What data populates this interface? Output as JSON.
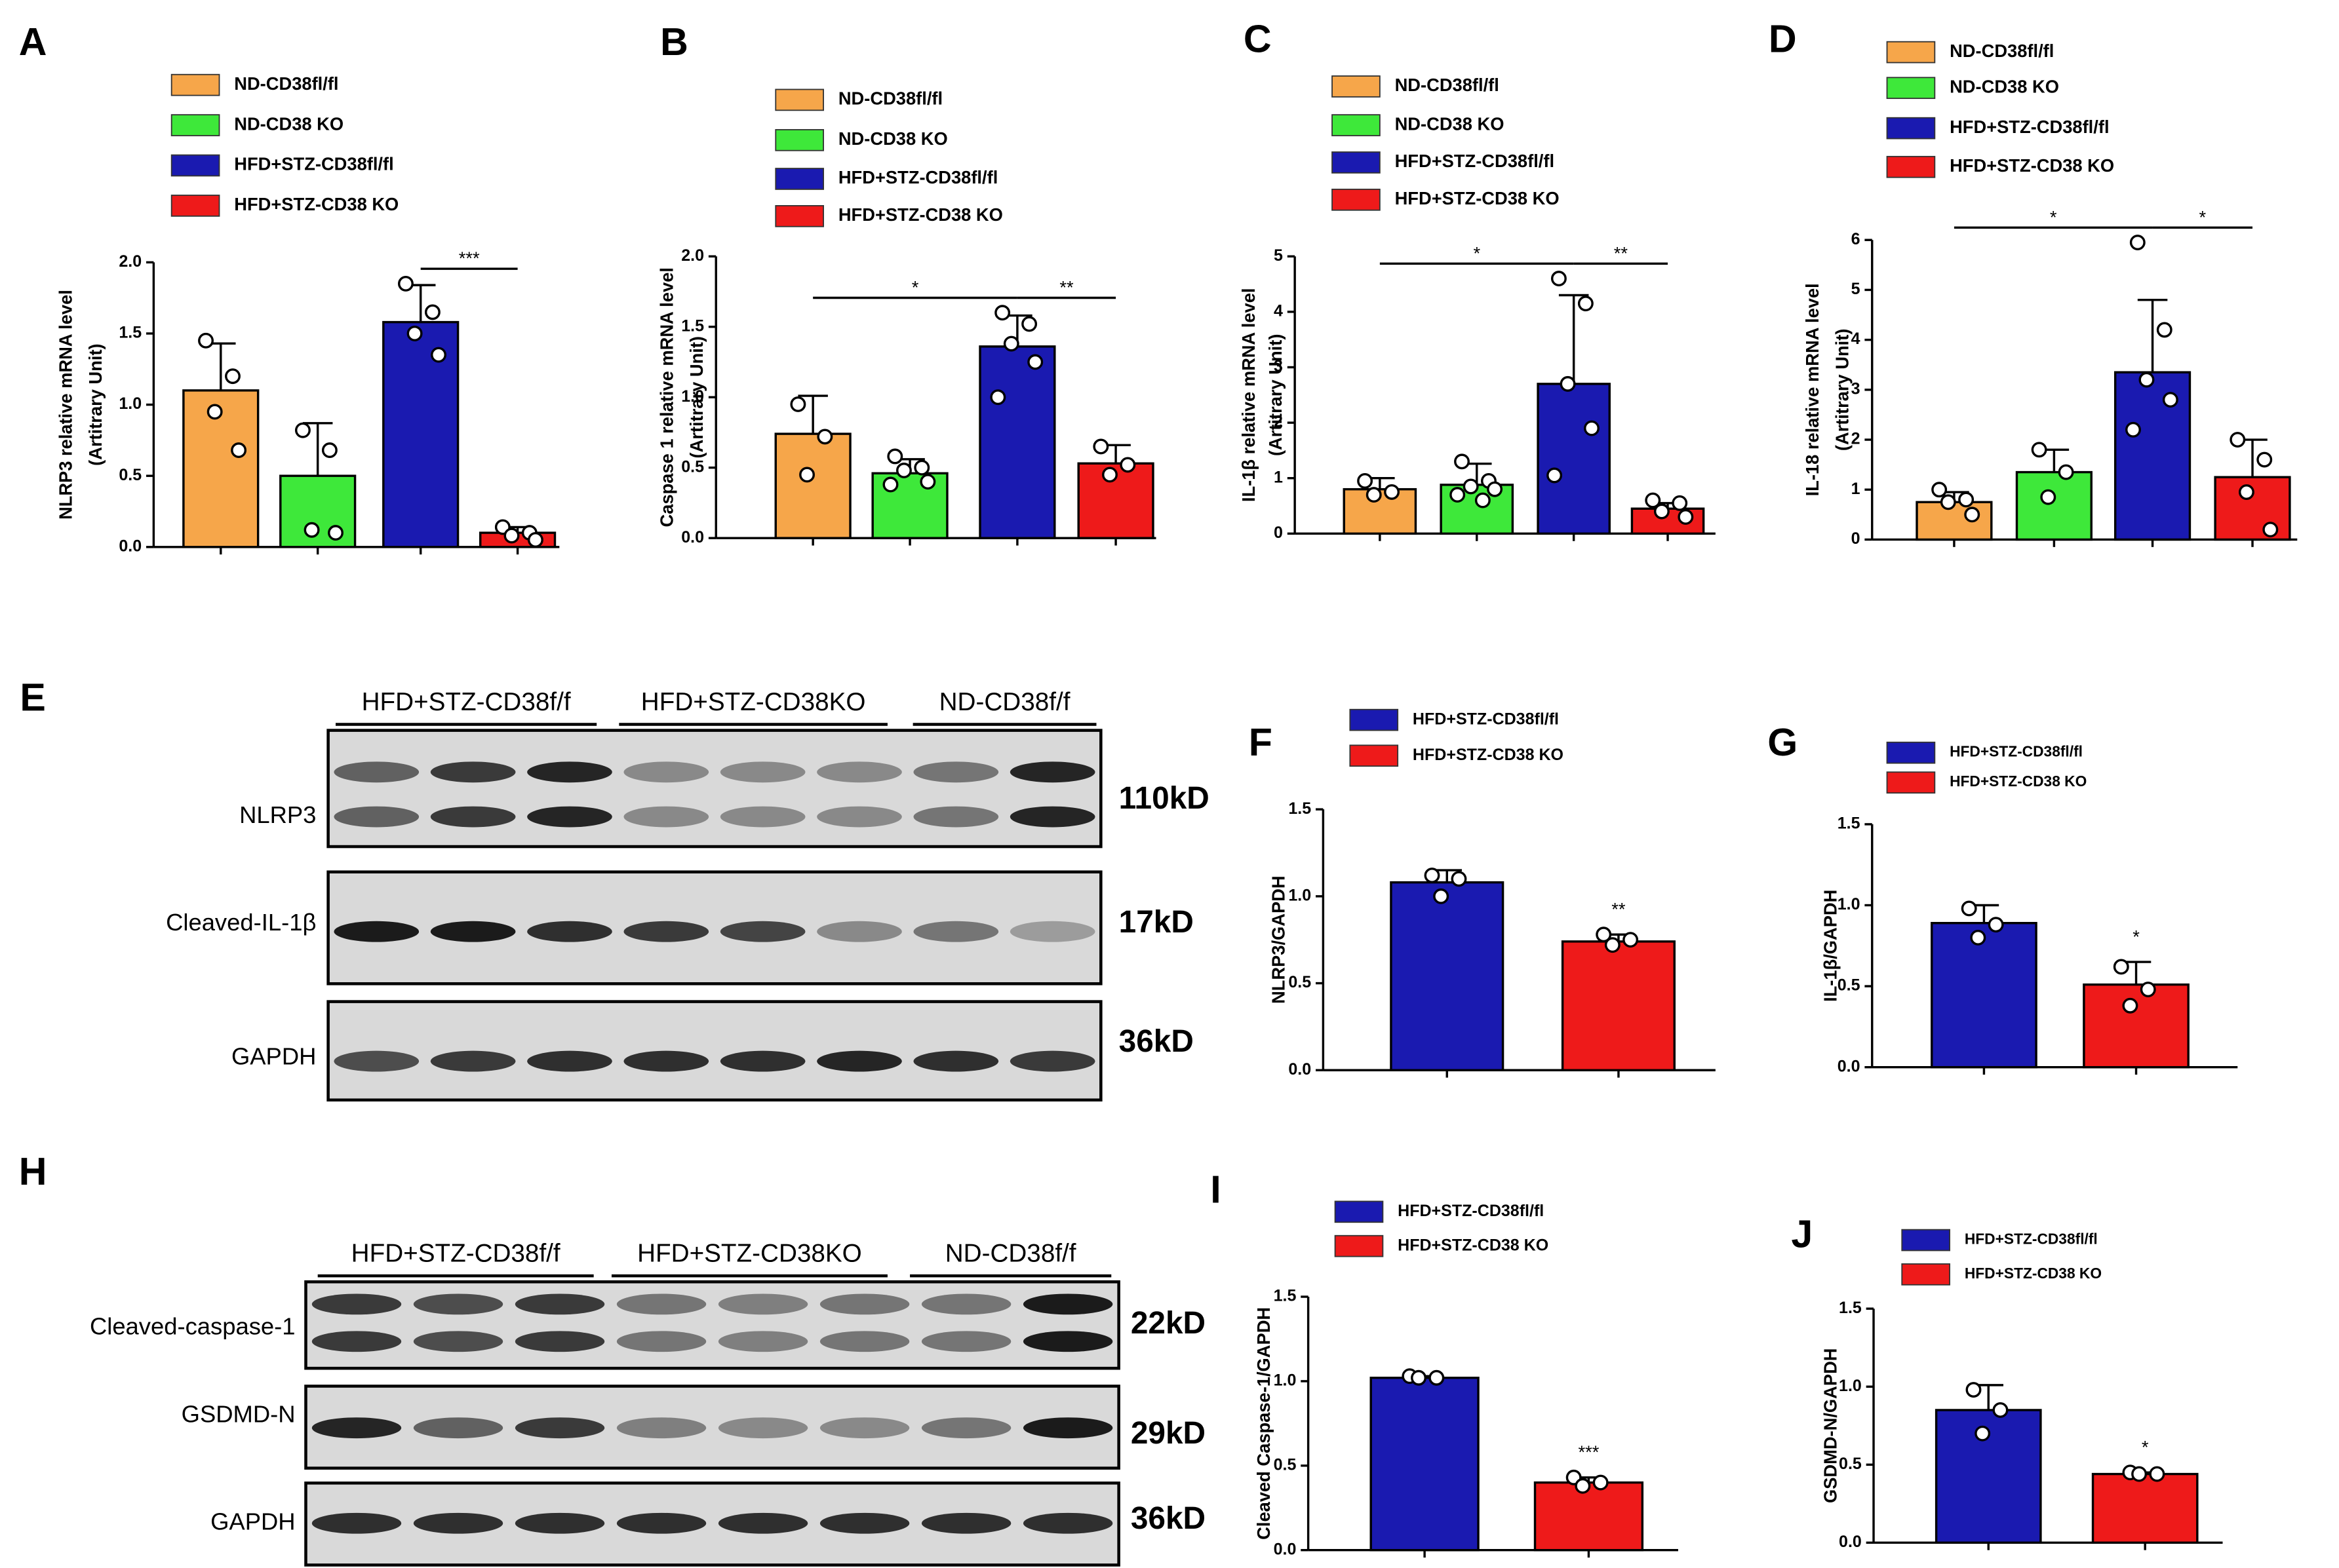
{
  "chart_data": [
    {
      "type": "bar",
      "panel": "A",
      "ylabel": [
        "NLRP3  relative mRNA level",
        "(Artitrary Unit)"
      ],
      "categories": [
        null
      ],
      "series": [
        {
          "name": "ND-CD38fl/fl",
          "color": "#f6a64a",
          "values": [
            1.1
          ],
          "errors": [
            0.33
          ],
          "points": [
            [
              1.45,
              1.2,
              0.95,
              0.68
            ]
          ]
        },
        {
          "name": "ND-CD38 KO",
          "color": "#3ee83a",
          "values": [
            0.5
          ],
          "errors": [
            0.37
          ],
          "points": [
            [
              0.82,
              0.68,
              0.12,
              0.1
            ]
          ]
        },
        {
          "name": "HFD+STZ-CD38fl/fl",
          "color": "#1a1ab0",
          "values": [
            1.58
          ],
          "errors": [
            0.26
          ],
          "points": [
            [
              1.85,
              1.65,
              1.5,
              1.35
            ]
          ]
        },
        {
          "name": "HFD+STZ-CD38 KO",
          "color": "#ee1a1a",
          "values": [
            0.1
          ],
          "errors": [
            0.04
          ],
          "points": [
            [
              0.14,
              0.1,
              0.08,
              0.05
            ]
          ]
        }
      ],
      "ylim": [
        0,
        2
      ],
      "yticks": [
        {
          "value": 0,
          "label": "0.0"
        },
        {
          "value": 0.5,
          "label": "0.5"
        },
        {
          "value": 1,
          "label": "1.0"
        },
        {
          "value": 1.5,
          "label": "1.5"
        },
        {
          "value": 2,
          "label": "2.0"
        }
      ],
      "annotations": [
        "***"
      ]
    },
    {
      "type": "bar",
      "panel": "B",
      "ylabel": [
        "Caspase 1  relative mRNA level",
        "(Artitrary Unit)"
      ],
      "categories": [
        null
      ],
      "series": [
        {
          "name": "ND-CD38fl/fl",
          "color": "#f6a64a",
          "values": [
            0.74
          ],
          "errors": [
            0.27
          ],
          "points": [
            [
              0.95,
              0.72,
              0.45
            ]
          ]
        },
        {
          "name": "ND-CD38 KO",
          "color": "#3ee83a",
          "values": [
            0.46
          ],
          "errors": [
            0.1
          ],
          "points": [
            [
              0.58,
              0.5,
              0.48,
              0.4,
              0.38
            ]
          ]
        },
        {
          "name": "HFD+STZ-CD38fl/fl",
          "color": "#1a1ab0",
          "values": [
            1.36
          ],
          "errors": [
            0.22
          ],
          "points": [
            [
              1.6,
              1.52,
              1.38,
              1.25,
              1.0
            ]
          ]
        },
        {
          "name": "HFD+STZ-CD38 KO",
          "color": "#ee1a1a",
          "values": [
            0.53
          ],
          "errors": [
            0.13
          ],
          "points": [
            [
              0.65,
              0.52,
              0.45
            ]
          ]
        }
      ],
      "ylim": [
        0,
        2
      ],
      "yticks": [
        {
          "value": 0,
          "label": "0.0"
        },
        {
          "value": 0.5,
          "label": "0.5"
        },
        {
          "value": 1,
          "label": "1.0"
        },
        {
          "value": 1.5,
          "label": "1.5"
        },
        {
          "value": 2,
          "label": "2.0"
        }
      ],
      "annotations": [
        "*",
        "**"
      ]
    },
    {
      "type": "bar",
      "panel": "C",
      "ylabel": [
        "IL-1β  relative mRNA level",
        "(Artitrary Unit)"
      ],
      "categories": [
        null
      ],
      "series": [
        {
          "name": "ND-CD38fl/fl",
          "color": "#f6a64a",
          "values": [
            0.8
          ],
          "errors": [
            0.2
          ],
          "points": [
            [
              0.95,
              0.75,
              0.7
            ]
          ]
        },
        {
          "name": "ND-CD38 KO",
          "color": "#3ee83a",
          "values": [
            0.88
          ],
          "errors": [
            0.38
          ],
          "points": [
            [
              1.3,
              0.95,
              0.85,
              0.8,
              0.7,
              0.6
            ]
          ]
        },
        {
          "name": "HFD+STZ-CD38fl/fl",
          "color": "#1a1ab0",
          "values": [
            2.7
          ],
          "errors": [
            1.6
          ],
          "points": [
            [
              4.6,
              4.15,
              2.7,
              1.9,
              1.05
            ]
          ]
        },
        {
          "name": "HFD+STZ-CD38 KO",
          "color": "#ee1a1a",
          "values": [
            0.45
          ],
          "errors": [
            0.1
          ],
          "points": [
            [
              0.6,
              0.55,
              0.4,
              0.3
            ]
          ]
        }
      ],
      "ylim": [
        0,
        5
      ],
      "yticks": [
        0,
        1,
        2,
        3,
        4,
        5
      ],
      "annotations": [
        "*",
        "**"
      ]
    },
    {
      "type": "bar",
      "panel": "D",
      "ylabel": [
        "IL-18 relative mRNA level",
        "(Artitrary Unit)"
      ],
      "categories": [
        null
      ],
      "series": [
        {
          "name": "ND-CD38fl/fl",
          "color": "#f6a64a",
          "values": [
            0.75
          ],
          "errors": [
            0.2
          ],
          "points": [
            [
              1.0,
              0.8,
              0.75,
              0.5
            ]
          ]
        },
        {
          "name": "ND-CD38 KO",
          "color": "#3ee83a",
          "values": [
            1.35
          ],
          "errors": [
            0.45
          ],
          "points": [
            [
              1.8,
              1.35,
              0.85
            ]
          ]
        },
        {
          "name": "HFD+STZ-CD38fl/fl",
          "color": "#1a1ab0",
          "values": [
            3.35
          ],
          "errors": [
            1.45
          ],
          "points": [
            [
              5.95,
              4.2,
              3.2,
              2.8,
              2.2
            ]
          ]
        },
        {
          "name": "HFD+STZ-CD38 KO",
          "color": "#ee1a1a",
          "values": [
            1.25
          ],
          "errors": [
            0.75
          ],
          "points": [
            [
              2.0,
              1.6,
              0.95,
              0.2
            ]
          ]
        }
      ],
      "ylim": [
        0,
        6
      ],
      "yticks": [
        0,
        1,
        2,
        3,
        4,
        5,
        6
      ],
      "annotations": [
        "*",
        "*"
      ]
    },
    {
      "type": "bar",
      "panel": "F",
      "ylabel": [
        "NLRP3/GAPDH"
      ],
      "categories": [
        null
      ],
      "series": [
        {
          "name": "HFD+STZ-CD38fl/fl",
          "color": "#1a1ab0",
          "values": [
            1.08
          ],
          "errors": [
            0.07
          ],
          "points": [
            [
              1.12,
              1.1,
              1.0
            ]
          ]
        },
        {
          "name": "HFD+STZ-CD38 KO",
          "color": "#ee1a1a",
          "values": [
            0.74
          ],
          "errors": [
            0.04
          ],
          "points": [
            [
              0.78,
              0.75,
              0.72
            ]
          ]
        }
      ],
      "ylim": [
        0,
        1.5
      ],
      "yticks": [
        {
          "value": 0,
          "label": "0.0"
        },
        {
          "value": 0.5,
          "label": "0.5"
        },
        {
          "value": 1,
          "label": "1.0"
        },
        {
          "value": 1.5,
          "label": "1.5"
        }
      ],
      "annotations": [
        "**"
      ]
    },
    {
      "type": "bar",
      "panel": "G",
      "ylabel": [
        "IL-1β/GAPDH"
      ],
      "categories": [
        null
      ],
      "series": [
        {
          "name": "HFD+STZ-CD38fl/fl",
          "color": "#1a1ab0",
          "values": [
            0.89
          ],
          "errors": [
            0.11
          ],
          "points": [
            [
              0.98,
              0.88,
              0.8
            ]
          ]
        },
        {
          "name": "HFD+STZ-CD38 KO",
          "color": "#ee1a1a",
          "values": [
            0.51
          ],
          "errors": [
            0.14
          ],
          "points": [
            [
              0.62,
              0.48,
              0.38
            ]
          ]
        }
      ],
      "ylim": [
        0,
        1.5
      ],
      "yticks": [
        {
          "value": 0,
          "label": "0.0"
        },
        {
          "value": 0.5,
          "label": "0.5"
        },
        {
          "value": 1,
          "label": "1.0"
        },
        {
          "value": 1.5,
          "label": "1.5"
        }
      ],
      "annotations": [
        "*"
      ]
    },
    {
      "type": "bar",
      "panel": "I",
      "ylabel": [
        "Cleaved Caspase-1/GAPDH"
      ],
      "categories": [
        null
      ],
      "series": [
        {
          "name": "HFD+STZ-CD38fl/fl",
          "color": "#1a1ab0",
          "values": [
            1.02
          ],
          "errors": [
            0.01
          ],
          "points": [
            [
              1.03,
              1.02,
              1.02
            ]
          ]
        },
        {
          "name": "HFD+STZ-CD38 KO",
          "color": "#ee1a1a",
          "values": [
            0.4
          ],
          "errors": [
            0.03
          ],
          "points": [
            [
              0.43,
              0.4,
              0.38
            ]
          ]
        }
      ],
      "ylim": [
        0,
        1.5
      ],
      "yticks": [
        {
          "value": 0,
          "label": "0.0"
        },
        {
          "value": 0.5,
          "label": "0.5"
        },
        {
          "value": 1,
          "label": "1.0"
        },
        {
          "value": 1.5,
          "label": "1.5"
        }
      ],
      "annotations": [
        "***"
      ]
    },
    {
      "type": "bar",
      "panel": "J",
      "ylabel": [
        "GSDMD-N/GAPDH"
      ],
      "categories": [
        null
      ],
      "series": [
        {
          "name": "HFD+STZ-CD38fl/fl",
          "color": "#1a1ab0",
          "values": [
            0.85
          ],
          "errors": [
            0.16
          ],
          "points": [
            [
              0.98,
              0.85,
              0.7
            ]
          ]
        },
        {
          "name": "HFD+STZ-CD38 KO",
          "color": "#ee1a1a",
          "values": [
            0.44
          ],
          "errors": [
            0.01
          ],
          "points": [
            [
              0.45,
              0.44,
              0.44
            ]
          ]
        }
      ],
      "ylim": [
        0,
        1.5
      ],
      "yticks": [
        {
          "value": 0,
          "label": "0.0"
        },
        {
          "value": 0.5,
          "label": "0.5"
        },
        {
          "value": 1,
          "label": "1.0"
        },
        {
          "value": 1.5,
          "label": "1.5"
        }
      ],
      "annotations": [
        "*"
      ]
    }
  ],
  "blots": [
    {
      "panel": "E",
      "groups": [
        "HFD+STZ-CD38f/f",
        "HFD+STZ-CD38KO",
        "ND-CD38f/f"
      ],
      "rows": [
        {
          "label": "NLRP3",
          "size": "110kD"
        },
        {
          "label": "Cleaved-IL-1β",
          "size": "17kD"
        },
        {
          "label": "GAPDH",
          "size": "36kD"
        }
      ]
    },
    {
      "panel": "H",
      "groups": [
        "HFD+STZ-CD38f/f",
        "HFD+STZ-CD38KO",
        "ND-CD38f/f"
      ],
      "rows": [
        {
          "label": "Cleaved-caspase-1",
          "size": "22kD"
        },
        {
          "label": "GSDMD-N",
          "size": "29kD"
        },
        {
          "label": "GAPDH",
          "size": "36kD"
        }
      ]
    }
  ]
}
